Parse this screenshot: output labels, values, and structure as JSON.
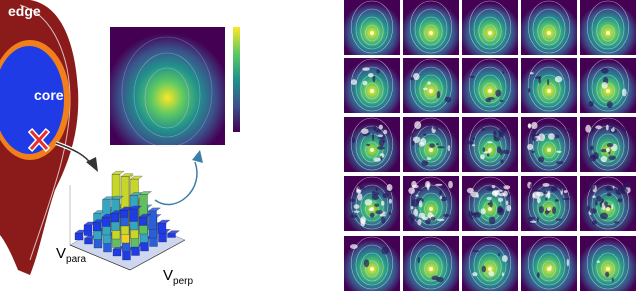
{
  "regions": {
    "edge": "edge",
    "core": "core"
  },
  "axis_labels": [
    {
      "main": "V",
      "sub": "para"
    },
    {
      "main": "V",
      "sub": "perp"
    }
  ]
}
